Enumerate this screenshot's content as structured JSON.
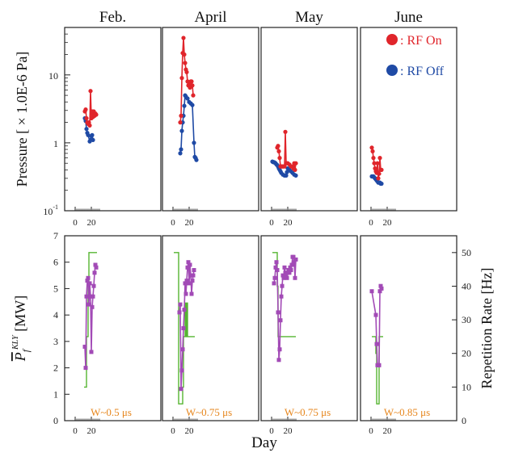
{
  "chart_data": {
    "type": "line",
    "xlabel": "Day",
    "months": [
      "Feb.",
      "April",
      "May",
      "June"
    ],
    "top": {
      "ylabel": "Pressure [ × 1.0E-6 Pa]",
      "yscale": "log",
      "ylim": [
        0.1,
        50
      ],
      "yticks": [
        {
          "value": 0.1,
          "base": "10",
          "exp": "-1"
        },
        {
          "value": 1,
          "base": "1",
          "exp": ""
        },
        {
          "value": 10,
          "base": "10",
          "exp": ""
        }
      ],
      "xlim": [
        0,
        30
      ],
      "xticks": [
        "0",
        "20",
        "0",
        "20",
        "0",
        "20",
        "0",
        "20"
      ],
      "legend": {
        "rf_on": ": RF On",
        "rf_off": ": RF Off",
        "placement": "top-right"
      },
      "colors": {
        "rf_on": "#e0252b",
        "rf_off": "#1f4aa5"
      },
      "panels": [
        {
          "month": "Feb.",
          "rf_on": [
            [
              12,
              2.9
            ],
            [
              13,
              3.1
            ],
            [
              14,
              2.3
            ],
            [
              15,
              2.0
            ],
            [
              16,
              1.9
            ],
            [
              17,
              2.0
            ],
            [
              18,
              1.8
            ],
            [
              19,
              5.8
            ],
            [
              20,
              2.3
            ],
            [
              21,
              2.9
            ],
            [
              22,
              2.4
            ],
            [
              23,
              2.9
            ],
            [
              24,
              2.5
            ],
            [
              25,
              2.7
            ],
            [
              26,
              2.6
            ]
          ],
          "rf_off": [
            [
              12,
              2.3
            ],
            [
              13,
              2.1
            ],
            [
              14,
              1.6
            ],
            [
              15,
              1.4
            ],
            [
              16,
              1.3
            ],
            [
              18,
              1.05
            ],
            [
              19,
              1.1
            ],
            [
              20,
              1.25
            ],
            [
              21,
              1.3
            ],
            [
              22,
              1.1
            ]
          ]
        },
        {
          "month": "April",
          "rf_on": [
            [
              9,
              2.0
            ],
            [
              10,
              2.5
            ],
            [
              11,
              9.0
            ],
            [
              12,
              21
            ],
            [
              13,
              35
            ],
            [
              14,
              20
            ],
            [
              15,
              15
            ],
            [
              16,
              12
            ],
            [
              17,
              11
            ],
            [
              18,
              8.0
            ],
            [
              19,
              7.0
            ],
            [
              20,
              7.5
            ],
            [
              21,
              6.5
            ],
            [
              22,
              8.0
            ],
            [
              23,
              8.0
            ],
            [
              24,
              7.0
            ],
            [
              25,
              5.0
            ]
          ],
          "rf_off": [
            [
              9,
              0.7
            ],
            [
              10,
              0.8
            ],
            [
              11,
              1.5
            ],
            [
              12,
              2.0
            ],
            [
              13,
              2.5
            ],
            [
              14,
              3.5
            ],
            [
              15,
              5.0
            ],
            [
              16,
              4.8
            ],
            [
              18,
              4.5
            ],
            [
              20,
              4.0
            ],
            [
              22,
              3.8
            ],
            [
              24,
              3.6
            ],
            [
              26,
              1.0
            ],
            [
              27,
              0.62
            ],
            [
              28,
              0.6
            ],
            [
              29,
              0.56
            ]
          ]
        },
        {
          "month": "May",
          "rf_on": [
            [
              7,
              0.85
            ],
            [
              8,
              0.9
            ],
            [
              9,
              0.75
            ],
            [
              10,
              0.6
            ],
            [
              11,
              0.45
            ],
            [
              12,
              0.45
            ],
            [
              13,
              0.45
            ],
            [
              14,
              0.45
            ],
            [
              15,
              0.45
            ],
            [
              16,
              0.45
            ],
            [
              17,
              1.45
            ],
            [
              18,
              0.5
            ],
            [
              19,
              0.5
            ],
            [
              20,
              0.5
            ],
            [
              22,
              0.48
            ],
            [
              24,
              0.45
            ],
            [
              26,
              0.45
            ],
            [
              27,
              0.42
            ],
            [
              28,
              0.5
            ],
            [
              29,
              0.4
            ],
            [
              30,
              0.5
            ]
          ],
          "rf_off": [
            [
              1,
              0.53
            ],
            [
              2,
              0.52
            ],
            [
              3,
              0.52
            ],
            [
              4,
              0.51
            ],
            [
              5,
              0.5
            ],
            [
              6,
              0.48
            ],
            [
              7,
              0.47
            ],
            [
              8,
              0.45
            ],
            [
              9,
              0.42
            ],
            [
              10,
              0.4
            ],
            [
              11,
              0.38
            ],
            [
              12,
              0.36
            ],
            [
              14,
              0.34
            ],
            [
              16,
              0.33
            ],
            [
              18,
              0.33
            ],
            [
              19,
              0.37
            ],
            [
              20,
              0.42
            ],
            [
              22,
              0.4
            ],
            [
              24,
              0.38
            ],
            [
              26,
              0.36
            ],
            [
              28,
              0.34
            ],
            [
              30,
              0.33
            ]
          ]
        },
        {
          "month": "June",
          "rf_on": [
            [
              1,
              0.85
            ],
            [
              2,
              0.75
            ],
            [
              3,
              0.6
            ],
            [
              4,
              0.5
            ],
            [
              5,
              0.42
            ],
            [
              6,
              0.38
            ],
            [
              7,
              0.36
            ],
            [
              8,
              0.5
            ],
            [
              9,
              0.3
            ],
            [
              10,
              0.35
            ],
            [
              11,
              0.6
            ],
            [
              12,
              0.4
            ],
            [
              13,
              0.4
            ]
          ],
          "rf_off": [
            [
              1,
              0.32
            ],
            [
              2,
              0.32
            ],
            [
              3,
              0.32
            ],
            [
              4,
              0.31
            ],
            [
              5,
              0.3
            ],
            [
              6,
              0.29
            ],
            [
              7,
              0.28
            ],
            [
              8,
              0.27
            ],
            [
              9,
              0.26
            ],
            [
              10,
              0.26
            ],
            [
              11,
              0.26
            ],
            [
              12,
              0.25
            ],
            [
              13,
              0.25
            ]
          ]
        }
      ]
    },
    "bottom": {
      "ylabel_left": {
        "main": "P",
        "sub": "f",
        "sup": "KLY",
        "unit": "[MW]"
      },
      "ylabel_right": "Repetition Rate [Hz]",
      "ylim_left": [
        0,
        7
      ],
      "yticks_left": [
        "0",
        "1",
        "2",
        "3",
        "4",
        "5",
        "6",
        "7"
      ],
      "ylim_right": [
        0,
        55
      ],
      "yticks_right": [
        "0",
        "10",
        "20",
        "30",
        "40",
        "50"
      ],
      "xlim": [
        0,
        30
      ],
      "xticks": [
        "0",
        "20",
        "0",
        "20",
        "0",
        "20",
        "0",
        "20"
      ],
      "colors": {
        "power": "#a24ab6",
        "reprate": "#55b531",
        "pulse_label": "#e6861d"
      },
      "panels": [
        {
          "month": "Feb.",
          "pulse_label": "W~0.5 μs",
          "power": [
            [
              12,
              2.8
            ],
            [
              13,
              2.0
            ],
            [
              14,
              4.7
            ],
            [
              15,
              5.3
            ],
            [
              16,
              5.4
            ],
            [
              17,
              4.4
            ],
            [
              18,
              5.2
            ],
            [
              19,
              4.7
            ],
            [
              20,
              2.6
            ],
            [
              21,
              4.3
            ],
            [
              22,
              4.7
            ],
            [
              23,
              5.1
            ],
            [
              24,
              5.6
            ],
            [
              25,
              5.9
            ],
            [
              26,
              5.8
            ]
          ],
          "reprate": [
            [
              11,
              10
            ],
            [
              14,
              10
            ],
            [
              14,
              25
            ],
            [
              16,
              25
            ],
            [
              16,
              41
            ],
            [
              17,
              41
            ],
            [
              17,
              50
            ],
            [
              27,
              50
            ]
          ]
        },
        {
          "month": "April",
          "pulse_label": "W~0.75 μs",
          "power": [
            [
              8,
              4.1
            ],
            [
              9,
              4.4
            ],
            [
              10,
              1.2
            ],
            [
              11,
              1.9
            ],
            [
              12,
              2.7
            ],
            [
              13,
              3.5
            ],
            [
              14,
              4.2
            ],
            [
              15,
              5.2
            ],
            [
              16,
              4.8
            ],
            [
              17,
              5.3
            ],
            [
              18,
              5.8
            ],
            [
              19,
              6.0
            ],
            [
              20,
              5.2
            ],
            [
              21,
              5.9
            ],
            [
              22,
              5.5
            ],
            [
              23,
              4.8
            ],
            [
              24,
              5.3
            ],
            [
              25,
              5.5
            ],
            [
              26,
              5.7
            ]
          ],
          "reprate": [
            [
              1,
              50
            ],
            [
              7,
              50
            ],
            [
              7,
              5
            ],
            [
              12,
              5
            ],
            [
              12,
              10
            ],
            [
              13,
              10
            ],
            [
              13,
              25
            ],
            [
              15,
              25
            ],
            [
              15,
              35
            ],
            [
              16,
              35
            ],
            [
              16,
              25
            ],
            [
              17,
              25
            ],
            [
              17,
              35
            ],
            [
              18,
              35
            ],
            [
              18,
              25
            ],
            [
              27,
              25
            ]
          ]
        },
        {
          "month": "May",
          "pulse_label": "W~0.75 μs",
          "power": [
            [
              3,
              5.2
            ],
            [
              4,
              5.4
            ],
            [
              5,
              5.8
            ],
            [
              6,
              6.0
            ],
            [
              7,
              5.7
            ],
            [
              8,
              4.1
            ],
            [
              9,
              2.3
            ],
            [
              10,
              2.7
            ],
            [
              11,
              3.8
            ],
            [
              12,
              4.7
            ],
            [
              13,
              5.1
            ],
            [
              14,
              5.5
            ],
            [
              15,
              5.4
            ],
            [
              16,
              5.8
            ],
            [
              17,
              5.6
            ],
            [
              18,
              5.5
            ],
            [
              19,
              5.4
            ],
            [
              20,
              5.6
            ],
            [
              21,
              5.7
            ],
            [
              22,
              5.6
            ],
            [
              23,
              5.8
            ],
            [
              24,
              5.7
            ],
            [
              25,
              5.9
            ],
            [
              26,
              6.2
            ],
            [
              27,
              6.2
            ],
            [
              28,
              6.0
            ],
            [
              29,
              5.4
            ],
            [
              30,
              6.1
            ]
          ],
          "reprate": [
            [
              1,
              50
            ],
            [
              7,
              50
            ],
            [
              7,
              40
            ],
            [
              8,
              40
            ],
            [
              8,
              25
            ],
            [
              30,
              25
            ]
          ]
        },
        {
          "month": "June",
          "pulse_label": "W~0.85 μs",
          "power": [
            [
              1,
              4.9
            ],
            [
              6,
              4.0
            ],
            [
              7,
              2.9
            ],
            [
              8,
              2.1
            ],
            [
              9,
              2.1
            ],
            [
              10,
              2.1
            ],
            [
              11,
              4.9
            ],
            [
              12,
              5.1
            ],
            [
              13,
              5.0
            ]
          ],
          "reprate": [
            [
              1,
              25
            ],
            [
              6,
              25
            ],
            [
              6,
              20
            ],
            [
              7,
              20
            ],
            [
              7,
              5
            ],
            [
              10,
              5
            ],
            [
              10,
              25
            ],
            [
              15,
              25
            ]
          ]
        }
      ]
    }
  }
}
